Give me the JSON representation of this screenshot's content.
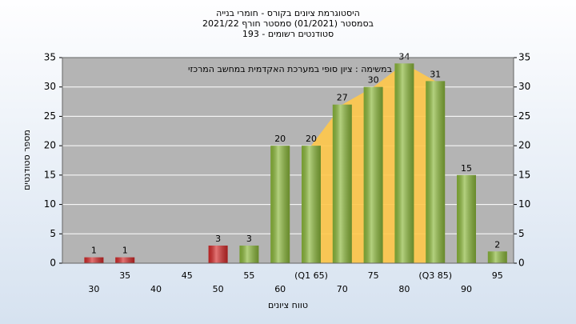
{
  "chart_data": {
    "type": "bar",
    "title": "היסטוגרמת ציונים בקורס - חומרי בנייה",
    "subtitle": "בסמסטר  (01/2021)  סמסטר חורף 2021/22",
    "subtitle2": "סטודנטים רשומים - 193",
    "annotation": "במשימה : ציון סופי במערכת האקדמית במחשב המרכזי",
    "xlabel": "טווח ציונים",
    "ylabel": "מספר סטודנטים",
    "categories": [
      "30",
      "35",
      "40",
      "45",
      "50",
      "55",
      "60",
      "(Q1 65)",
      "70",
      "75",
      "80",
      "(Q3 85)",
      "90",
      "95"
    ],
    "values": [
      1,
      1,
      0,
      0,
      3,
      3,
      20,
      20,
      27,
      30,
      34,
      31,
      15,
      2
    ],
    "colors": [
      "#d42a2a",
      "#d42a2a",
      "#8bb83a",
      "#8bb83a",
      "#d42a2a",
      "#8bb83a",
      "#8bb83a",
      "#8bb83a",
      "#8bb83a",
      "#8bb83a",
      "#8bb83a",
      "#8bb83a",
      "#8bb83a",
      "#8bb83a"
    ],
    "ylim": [
      0,
      35
    ],
    "yticks": [
      0,
      5,
      10,
      15,
      20,
      25,
      30,
      35
    ],
    "y2lim": [
      0,
      35
    ],
    "y2ticks": [
      0,
      5,
      10,
      15,
      20,
      25,
      30,
      35
    ],
    "grid": true
  }
}
